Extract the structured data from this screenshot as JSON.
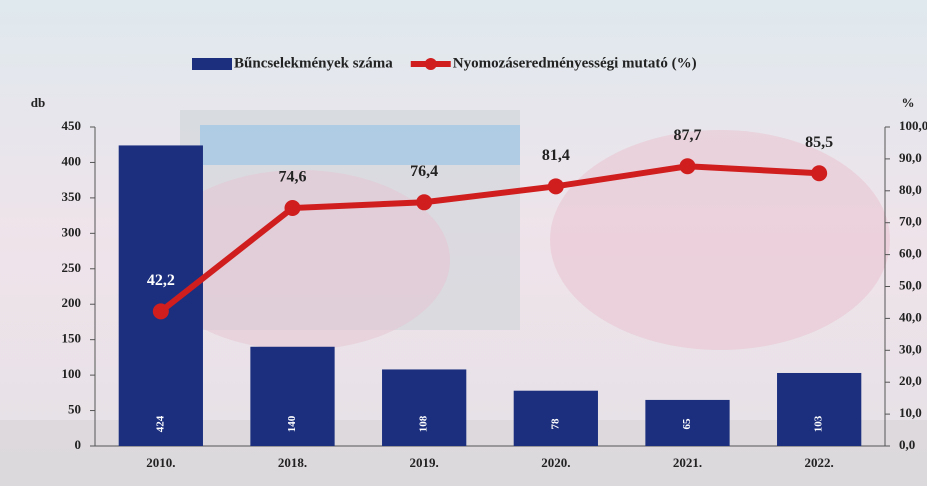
{
  "chart_data": {
    "type": "bar",
    "categories": [
      "2010.",
      "2018.",
      "2019.",
      "2020.",
      "2021.",
      "2022."
    ],
    "series": [
      {
        "name": "Bűncselekmények száma",
        "type": "bar",
        "color": "#1b2f7e",
        "values": [
          424,
          140,
          108,
          78,
          65,
          103
        ]
      },
      {
        "name": "Nyomozáseredményességi mutató (%)",
        "type": "line",
        "axis": "y2",
        "color": "#d01e1e",
        "values": [
          42.2,
          74.6,
          76.4,
          81.4,
          87.7,
          85.5
        ],
        "value_labels": [
          "42,2",
          "74,6",
          "76,4",
          "81,4",
          "87,7",
          "85,5"
        ]
      }
    ],
    "ylabel": "db",
    "y2label": "%",
    "ylim": [
      0,
      450
    ],
    "yticks": [
      0,
      50,
      100,
      150,
      200,
      250,
      300,
      350,
      400,
      450
    ],
    "y2lim": [
      0,
      100
    ],
    "y2ticks": [
      {
        "value": 0,
        "label": "0,0"
      },
      {
        "value": 10,
        "label": "10,0"
      },
      {
        "value": 20,
        "label": "20,0"
      },
      {
        "value": 30,
        "label": "30,0"
      },
      {
        "value": 40,
        "label": "40,0"
      },
      {
        "value": 50,
        "label": "50,0"
      },
      {
        "value": 60,
        "label": "60,0"
      },
      {
        "value": 70,
        "label": "70,0"
      },
      {
        "value": 80,
        "label": "80,0"
      },
      {
        "value": 90,
        "label": "90,0"
      },
      {
        "value": 100,
        "label": "100,0"
      }
    ]
  }
}
